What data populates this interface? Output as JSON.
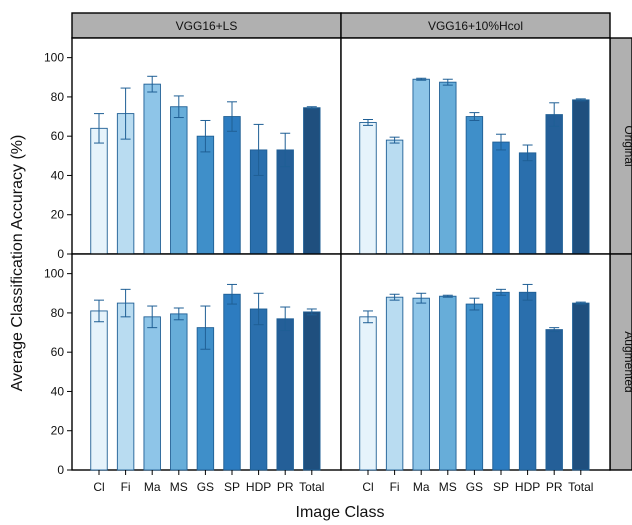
{
  "chart_data": {
    "type": "bar",
    "xlabel": "Image Class",
    "ylabel": "Average Classification Accuracy (%)",
    "ylim": [
      0,
      110
    ],
    "yticks": [
      0,
      20,
      40,
      60,
      80,
      100
    ],
    "grid": false,
    "categories": [
      "Cl",
      "Fi",
      "Ma",
      "MS",
      "GS",
      "SP",
      "HDP",
      "PR",
      "Total"
    ],
    "bar_colors": [
      "#e6f3fb",
      "#b9dcf1",
      "#8ec5e8",
      "#67add9",
      "#3f8fc9",
      "#2d7cc0",
      "#2a6fad",
      "#245f98",
      "#1f4f7e"
    ],
    "bar_edge_color": "#1f5f95",
    "strip_color": "#b0b0b0",
    "column_strips": [
      "VGG16+LS",
      "VGG16+10%Hcol"
    ],
    "row_strips": [
      "Original",
      "Augmented"
    ],
    "panels": [
      {
        "column": "VGG16+LS",
        "row": "Original",
        "values": [
          64,
          71.5,
          86.5,
          75,
          60,
          70,
          53,
          53,
          74.5
        ],
        "errors": [
          7.5,
          13,
          4,
          5.5,
          8,
          7.5,
          13,
          8.5,
          0.5
        ]
      },
      {
        "column": "VGG16+10%Hcol",
        "row": "Original",
        "values": [
          67,
          58,
          89,
          87.5,
          70,
          57,
          51.5,
          71,
          78.5
        ],
        "errors": [
          1.5,
          1.5,
          0.5,
          1.5,
          2,
          4,
          4,
          6,
          0.5
        ]
      },
      {
        "column": "VGG16+LS",
        "row": "Augmented",
        "values": [
          81,
          85,
          78,
          79.5,
          72.5,
          89.5,
          82,
          77,
          80.5
        ],
        "errors": [
          5.5,
          7,
          5.5,
          3,
          11,
          5,
          8,
          6,
          1.5
        ]
      },
      {
        "column": "VGG16+10%Hcol",
        "row": "Augmented",
        "values": [
          78,
          88,
          87.5,
          88.5,
          84.5,
          90.5,
          90.5,
          71.5,
          85
        ],
        "errors": [
          3,
          1.5,
          2.5,
          0.5,
          3,
          1.5,
          4,
          1,
          0.5
        ]
      }
    ]
  }
}
